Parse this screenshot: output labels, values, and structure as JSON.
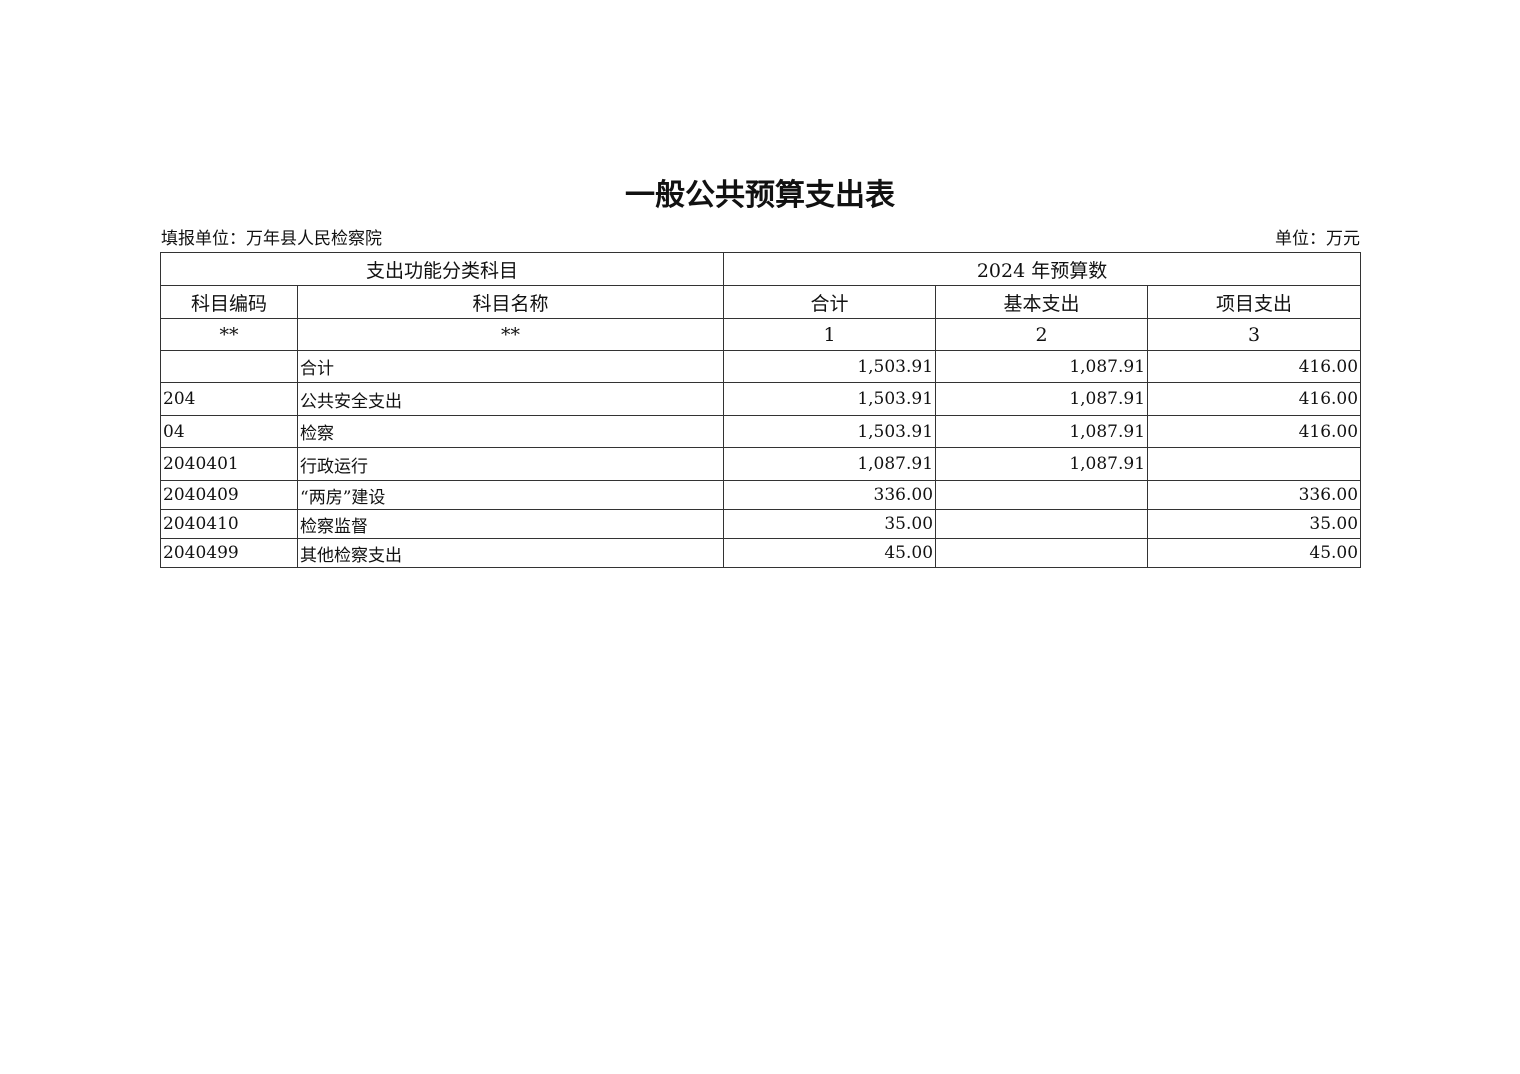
{
  "title": "一般公共预算支出表",
  "filler": "填报单位：万年县人民检察院",
  "unit": "单位：万元",
  "header": {
    "group_left": "支出功能分类科目",
    "group_right": "2024 年预算数",
    "code": "科目编码",
    "name": "科目名称",
    "total": "合计",
    "basic": "基本支出",
    "project": "项目支出",
    "idx_code": "**",
    "idx_name": "**",
    "idx_total": "1",
    "idx_basic": "2",
    "idx_project": "3"
  },
  "rows": [
    {
      "code": "",
      "name": "合计",
      "total": "1,503.91",
      "basic": "1,087.91",
      "project": "416.00"
    },
    {
      "code": "204",
      "name": "公共安全支出",
      "total": "1,503.91",
      "basic": "1,087.91",
      "project": "416.00"
    },
    {
      "code": "04",
      "name": "检察",
      "total": "1,503.91",
      "basic": "1,087.91",
      "project": "416.00"
    },
    {
      "code": "2040401",
      "name": "行政运行",
      "total": "1,087.91",
      "basic": "1,087.91",
      "project": ""
    },
    {
      "code": "2040409",
      "name": "“两房”建设",
      "total": "336.00",
      "basic": "",
      "project": "336.00"
    },
    {
      "code": "2040410",
      "name": "检察监督",
      "total": "35.00",
      "basic": "",
      "project": "35.00"
    },
    {
      "code": "2040499",
      "name": "其他检察支出",
      "total": "45.00",
      "basic": "",
      "project": "45.00"
    }
  ]
}
